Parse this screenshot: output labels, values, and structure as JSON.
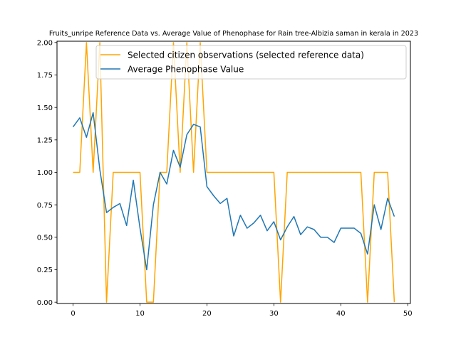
{
  "chart_data": {
    "type": "line",
    "title": "Fruits_unripe Reference Data vs. Average Value of Phenophase for Rain tree-Albizia saman in kerala in 2023",
    "xlabel": "",
    "ylabel": "",
    "xlim": [
      -2.4,
      50.4
    ],
    "ylim": [
      -0.01,
      2.01
    ],
    "x_ticks": [
      0,
      10,
      20,
      30,
      40,
      50
    ],
    "y_ticks": [
      0.0,
      0.25,
      0.5,
      0.75,
      1.0,
      1.25,
      1.5,
      1.75,
      2.0
    ],
    "x_tick_labels": [
      "0",
      "10",
      "20",
      "30",
      "40",
      "50"
    ],
    "y_tick_labels": [
      "0.00",
      "0.25",
      "0.50",
      "0.75",
      "1.00",
      "1.25",
      "1.50",
      "1.75",
      "2.00"
    ],
    "grid": false,
    "legend_position": "upper right",
    "series": [
      {
        "name": "Selected citizen observations (selected reference data)",
        "color": "#ffa500",
        "x": [
          0,
          1,
          2,
          3,
          4,
          5,
          6,
          7,
          8,
          9,
          10,
          11,
          12,
          13,
          14,
          15,
          16,
          17,
          18,
          19,
          20,
          21,
          22,
          23,
          24,
          25,
          26,
          27,
          28,
          29,
          30,
          31,
          32,
          33,
          34,
          35,
          36,
          37,
          38,
          39,
          40,
          41,
          42,
          43,
          44,
          45,
          46,
          47,
          48
        ],
        "y": [
          1,
          1,
          2,
          1,
          2,
          0,
          1,
          1,
          1,
          1,
          1,
          0,
          0,
          1,
          1,
          2,
          1,
          2,
          1,
          2,
          1,
          1,
          1,
          1,
          1,
          1,
          1,
          1,
          1,
          1,
          1,
          0,
          1,
          1,
          1,
          1,
          1,
          1,
          1,
          1,
          1,
          1,
          1,
          1,
          0,
          1,
          1,
          1,
          0
        ]
      },
      {
        "name": "Average Phenophase Value",
        "color": "#1f77b4",
        "x": [
          0,
          1,
          2,
          3,
          4,
          5,
          6,
          7,
          8,
          9,
          10,
          11,
          12,
          13,
          14,
          15,
          16,
          17,
          18,
          19,
          20,
          21,
          22,
          23,
          24,
          25,
          26,
          27,
          28,
          29,
          30,
          31,
          32,
          33,
          34,
          35,
          36,
          37,
          38,
          39,
          40,
          41,
          42,
          43,
          44,
          45,
          46,
          47,
          48
        ],
        "y": [
          1.35,
          1.42,
          1.27,
          1.46,
          1.02,
          0.69,
          0.73,
          0.76,
          0.59,
          0.94,
          0.57,
          0.25,
          0.75,
          1.0,
          0.91,
          1.17,
          1.04,
          1.29,
          1.37,
          1.35,
          0.89,
          0.82,
          0.76,
          0.8,
          0.51,
          0.67,
          0.57,
          0.61,
          0.67,
          0.55,
          0.62,
          0.48,
          0.58,
          0.66,
          0.52,
          0.58,
          0.56,
          0.5,
          0.5,
          0.46,
          0.57,
          0.57,
          0.57,
          0.53,
          0.37,
          0.75,
          0.56,
          0.8,
          0.66
        ]
      }
    ]
  }
}
